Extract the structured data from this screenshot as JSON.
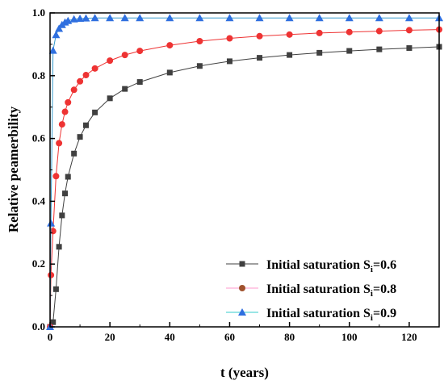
{
  "chart_data": {
    "type": "line",
    "xlabel": "t (years)",
    "ylabel": "Relative peamerbility",
    "xlim": [
      0,
      130
    ],
    "ylim": [
      0.0,
      1.0
    ],
    "x_ticks": [
      "0",
      "20",
      "40",
      "60",
      "80",
      "100",
      "120"
    ],
    "y_ticks": [
      "0.0",
      "0.2",
      "0.4",
      "0.6",
      "0.8",
      "1.0"
    ],
    "grid": false,
    "legend_position": "bottom-right",
    "series": [
      {
        "name": "Initial saturation S_i=0.6",
        "legend_prefix": "Initial saturation S",
        "legend_sub": "i",
        "legend_suffix": "=0.6",
        "marker": "square",
        "marker_color": "#404040",
        "line_color": "#404040",
        "x": [
          0,
          1,
          2,
          3,
          4,
          5,
          6,
          8,
          10,
          12,
          15,
          20,
          25,
          30,
          40,
          50,
          60,
          70,
          80,
          90,
          100,
          110,
          120,
          130
        ],
        "y": [
          0.0,
          0.015,
          0.12,
          0.255,
          0.355,
          0.425,
          0.478,
          0.552,
          0.605,
          0.642,
          0.683,
          0.728,
          0.758,
          0.78,
          0.81,
          0.831,
          0.846,
          0.857,
          0.866,
          0.873,
          0.879,
          0.884,
          0.888,
          0.892
        ]
      },
      {
        "name": "Initial saturation S_i=0.8",
        "legend_prefix": "Initial saturation S",
        "legend_sub": "i",
        "legend_suffix": "=0.8",
        "marker": "circle",
        "marker_color": "#ee3333",
        "legend_marker_color": "#a0522d",
        "line_color": "#ee3333",
        "legend_line_color": "#ff99cc",
        "x": [
          0,
          0.3,
          1,
          2,
          3,
          4,
          5,
          6,
          8,
          10,
          12,
          15,
          20,
          25,
          30,
          40,
          50,
          60,
          70,
          80,
          90,
          100,
          110,
          120,
          130
        ],
        "y": [
          0.0,
          0.165,
          0.305,
          0.48,
          0.585,
          0.645,
          0.685,
          0.715,
          0.755,
          0.782,
          0.802,
          0.823,
          0.848,
          0.866,
          0.879,
          0.897,
          0.91,
          0.919,
          0.926,
          0.931,
          0.936,
          0.939,
          0.942,
          0.945,
          0.947
        ]
      },
      {
        "name": "Initial saturation S_i=0.9",
        "legend_prefix": "Initial saturation S",
        "legend_sub": "i",
        "legend_suffix": "=0.9",
        "marker": "triangle",
        "marker_color": "#2f6fdf",
        "line_color": "#3399cc",
        "legend_line_color": "#33cccc",
        "x": [
          0,
          0.3,
          1,
          2,
          3,
          4,
          5,
          6,
          8,
          10,
          12,
          15,
          20,
          25,
          30,
          40,
          50,
          60,
          70,
          80,
          90,
          100,
          110,
          120,
          130
        ],
        "y": [
          0.0,
          0.33,
          0.88,
          0.93,
          0.95,
          0.962,
          0.97,
          0.975,
          0.98,
          0.982,
          0.983,
          0.984,
          0.984,
          0.984,
          0.984,
          0.984,
          0.984,
          0.984,
          0.984,
          0.984,
          0.984,
          0.984,
          0.984,
          0.984,
          0.984
        ]
      }
    ]
  }
}
